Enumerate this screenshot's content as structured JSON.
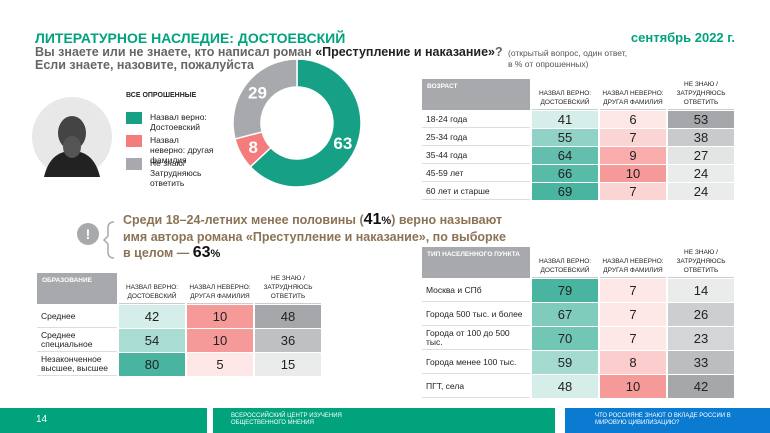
{
  "header": {
    "title": "ЛИТЕРАТУРНОЕ НАСЛЕДИЕ: ДОСТОЕВСКИЙ",
    "date": "сентябрь 2022 г.",
    "question_prefix": "Вы знаете или не знаете, кто написал роман ",
    "question_bold": "«Преступление и наказание»",
    "question_suffix": "?",
    "question_line2": "Если знаете, назовите, пожалуйста",
    "note_line1": "(открытый вопрос, один ответ,",
    "note_line2": "в % от опрошенных)"
  },
  "chart_data": {
    "type": "donut",
    "title": "ВСЕ ОПРОШЕННЫЕ",
    "categories": [
      "Назвал верно: Достоевский",
      "Назвал неверно: другая фамилия",
      "Не знаю/ Затрудняюсь ответить"
    ],
    "values": [
      63,
      8,
      29
    ],
    "colors": [
      "#16a085",
      "#f47c7c",
      "#a7a9ac"
    ]
  },
  "callout": {
    "text1": "Среди 18–24-летних менее половины (",
    "value1": 41,
    "unit": "%",
    "text2": ") верно называют имя автора романа «Преступление и наказание», по выборке в целом — ",
    "value2": 63
  },
  "tables": [
    {
      "header": "ВОЗРАСТ",
      "columns": [
        "НАЗВАЛ ВЕРНО: ДОСТОЕВСКИЙ",
        "НАЗВАЛ НЕВЕРНО: ДРУГАЯ ФАМИЛИЯ",
        "НЕ ЗНАЮ / ЗАТРУДНЯЮСЬ ОТВЕТИТЬ"
      ],
      "rows": [
        {
          "label": "18-24 года",
          "values": [
            41,
            6,
            53
          ]
        },
        {
          "label": "25-34 года",
          "values": [
            55,
            7,
            38
          ]
        },
        {
          "label": "35-44 года",
          "values": [
            64,
            9,
            27
          ]
        },
        {
          "label": "45-59 лет",
          "values": [
            66,
            10,
            24
          ]
        },
        {
          "label": "60 лет и старше",
          "values": [
            69,
            7,
            24
          ]
        }
      ]
    },
    {
      "header": "ОБРАЗОВАНИЕ",
      "columns": [
        "НАЗВАЛ ВЕРНО: ДОСТОЕВСКИЙ",
        "НАЗВАЛ НЕВЕРНО: ДРУГАЯ ФАМИЛИЯ",
        "НЕ ЗНАЮ / ЗАТРУДНЯЮСЬ ОТВЕТИТЬ"
      ],
      "rows": [
        {
          "label": "Среднее",
          "values": [
            42,
            10,
            48
          ]
        },
        {
          "label": "Среднее специальное",
          "values": [
            54,
            10,
            36
          ]
        },
        {
          "label": "Незаконченное высшее, высшее",
          "values": [
            80,
            5,
            15
          ]
        }
      ]
    },
    {
      "header": "ТИП НАСЕЛЕННОГО ПУНКТА",
      "columns": [
        "НАЗВАЛ ВЕРНО: ДОСТОЕВСКИЙ",
        "НАЗВАЛ НЕВЕРНО: ДРУГАЯ ФАМИЛИЯ",
        "НЕ ЗНАЮ / ЗАТРУДНЯЮСЬ ОТВЕТИТЬ"
      ],
      "rows": [
        {
          "label": "Москва и СПб",
          "values": [
            79,
            7,
            14
          ]
        },
        {
          "label": "Города 500 тыс. и более",
          "values": [
            67,
            7,
            26
          ]
        },
        {
          "label": "Города от 100 до 500 тыс.",
          "values": [
            70,
            7,
            23
          ]
        },
        {
          "label": "Города менее 100 тыс.",
          "values": [
            59,
            8,
            33
          ]
        },
        {
          "label": "ПГТ, села",
          "values": [
            48,
            10,
            42
          ]
        }
      ]
    }
  ],
  "footer": {
    "page": "14",
    "org": "ВСЕРОССИЙСКИЙ ЦЕНТР ИЗУЧЕНИЯ ОБЩЕСТВЕННОГО МНЕНИЯ",
    "series": "ЧТО РОССИЯНЕ ЗНАЮТ О ВКЛАДЕ РОССИИ В МИРОВУЮ ЦИВИЛИЗАЦИЮ?"
  }
}
